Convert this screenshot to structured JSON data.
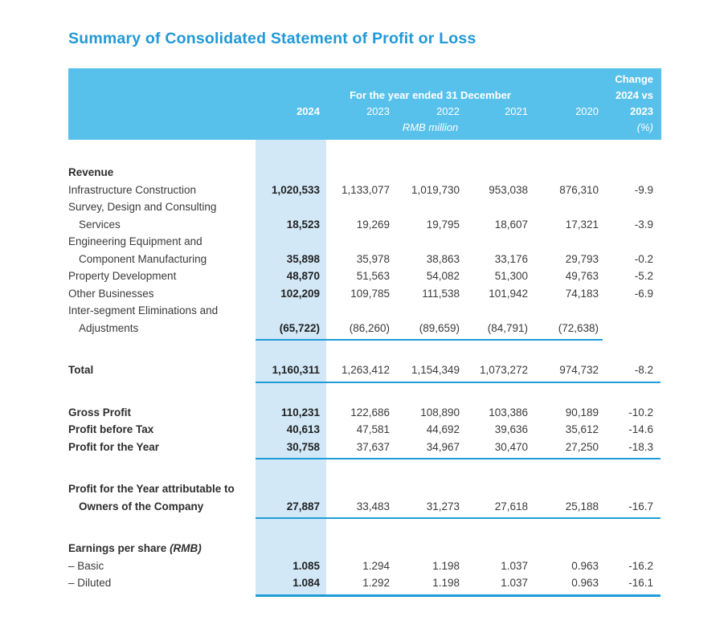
{
  "page": {
    "title": "Summary of Consolidated Statement of Profit or Loss"
  },
  "colors": {
    "band": "#57C1EB",
    "highlight": "#D2E8F7",
    "rule": "#1E9CD7",
    "title": "#2199D6",
    "text": "#3A3A3A"
  },
  "header": {
    "change_label": "Change",
    "period_label": "For the year ended 31 December",
    "change_vs": "2024 vs",
    "change_year": "2023",
    "unit_label": "RMB million",
    "pct_label": "(%)",
    "years": [
      "2024",
      "2023",
      "2022",
      "2021",
      "2020"
    ]
  },
  "table": {
    "columns": [
      "2024",
      "2023",
      "2022",
      "2021",
      "2020",
      "Change 2024 vs 2023 (%)"
    ],
    "sections": [
      {
        "rule": "short",
        "rows": [
          {
            "label": "Revenue",
            "bold": true,
            "values": []
          },
          {
            "label": "Infrastructure Construction",
            "values": [
              "1,020,533",
              "1,133,077",
              "1,019,730",
              "953,038",
              "876,310",
              "-9.9"
            ]
          },
          {
            "label": "Survey, Design and Consulting",
            "values": []
          },
          {
            "label": "Services",
            "indent": true,
            "values": [
              "18,523",
              "19,269",
              "19,795",
              "18,607",
              "17,321",
              "-3.9"
            ]
          },
          {
            "label": "Engineering Equipment and",
            "values": []
          },
          {
            "label": "Component Manufacturing",
            "indent": true,
            "values": [
              "35,898",
              "35,978",
              "38,863",
              "33,176",
              "29,793",
              "-0.2"
            ]
          },
          {
            "label": "Property Development",
            "values": [
              "48,870",
              "51,563",
              "54,082",
              "51,300",
              "49,763",
              "-5.2"
            ]
          },
          {
            "label": "Other Businesses",
            "values": [
              "102,209",
              "109,785",
              "111,538",
              "101,942",
              "74,183",
              "-6.9"
            ]
          },
          {
            "label": "Inter-segment Eliminations and",
            "values": []
          },
          {
            "label": "Adjustments",
            "indent": true,
            "values": [
              "(65,722)",
              "(86,260)",
              "(89,659)",
              "(84,791)",
              "(72,638)",
              ""
            ]
          }
        ]
      },
      {
        "rule": "full",
        "rows": [
          {
            "label": "Total",
            "bold": true,
            "values": [
              "1,160,311",
              "1,263,412",
              "1,154,349",
              "1,073,272",
              "974,732",
              "-8.2"
            ]
          }
        ]
      },
      {
        "rule": "full",
        "rows": [
          {
            "label": "Gross Profit",
            "bold": true,
            "values": [
              "110,231",
              "122,686",
              "108,890",
              "103,386",
              "90,189",
              "-10.2"
            ]
          },
          {
            "label": "Profit before Tax",
            "bold": true,
            "values": [
              "40,613",
              "47,581",
              "44,692",
              "39,636",
              "35,612",
              "-14.6"
            ]
          },
          {
            "label": "Profit for the Year",
            "bold": true,
            "values": [
              "30,758",
              "37,637",
              "34,967",
              "30,470",
              "27,250",
              "-18.3"
            ]
          }
        ]
      },
      {
        "rule": "full",
        "rows": [
          {
            "label": "Profit for the Year attributable to",
            "bold": true,
            "values": []
          },
          {
            "label": "Owners of the Company",
            "bold": true,
            "indent": true,
            "values": [
              "27,887",
              "33,483",
              "31,273",
              "27,618",
              "25,188",
              "-16.7"
            ]
          }
        ]
      },
      {
        "rule": "thick",
        "rows": [
          {
            "label": "Earnings per share",
            "bold": true,
            "suffix": "(RMB)",
            "values": []
          },
          {
            "label": "– Basic",
            "values": [
              "1.085",
              "1.294",
              "1.198",
              "1.037",
              "0.963",
              "-16.2"
            ]
          },
          {
            "label": "– Diluted",
            "values": [
              "1.084",
              "1.292",
              "1.198",
              "1.037",
              "0.963",
              "-16.1"
            ]
          }
        ]
      }
    ]
  }
}
